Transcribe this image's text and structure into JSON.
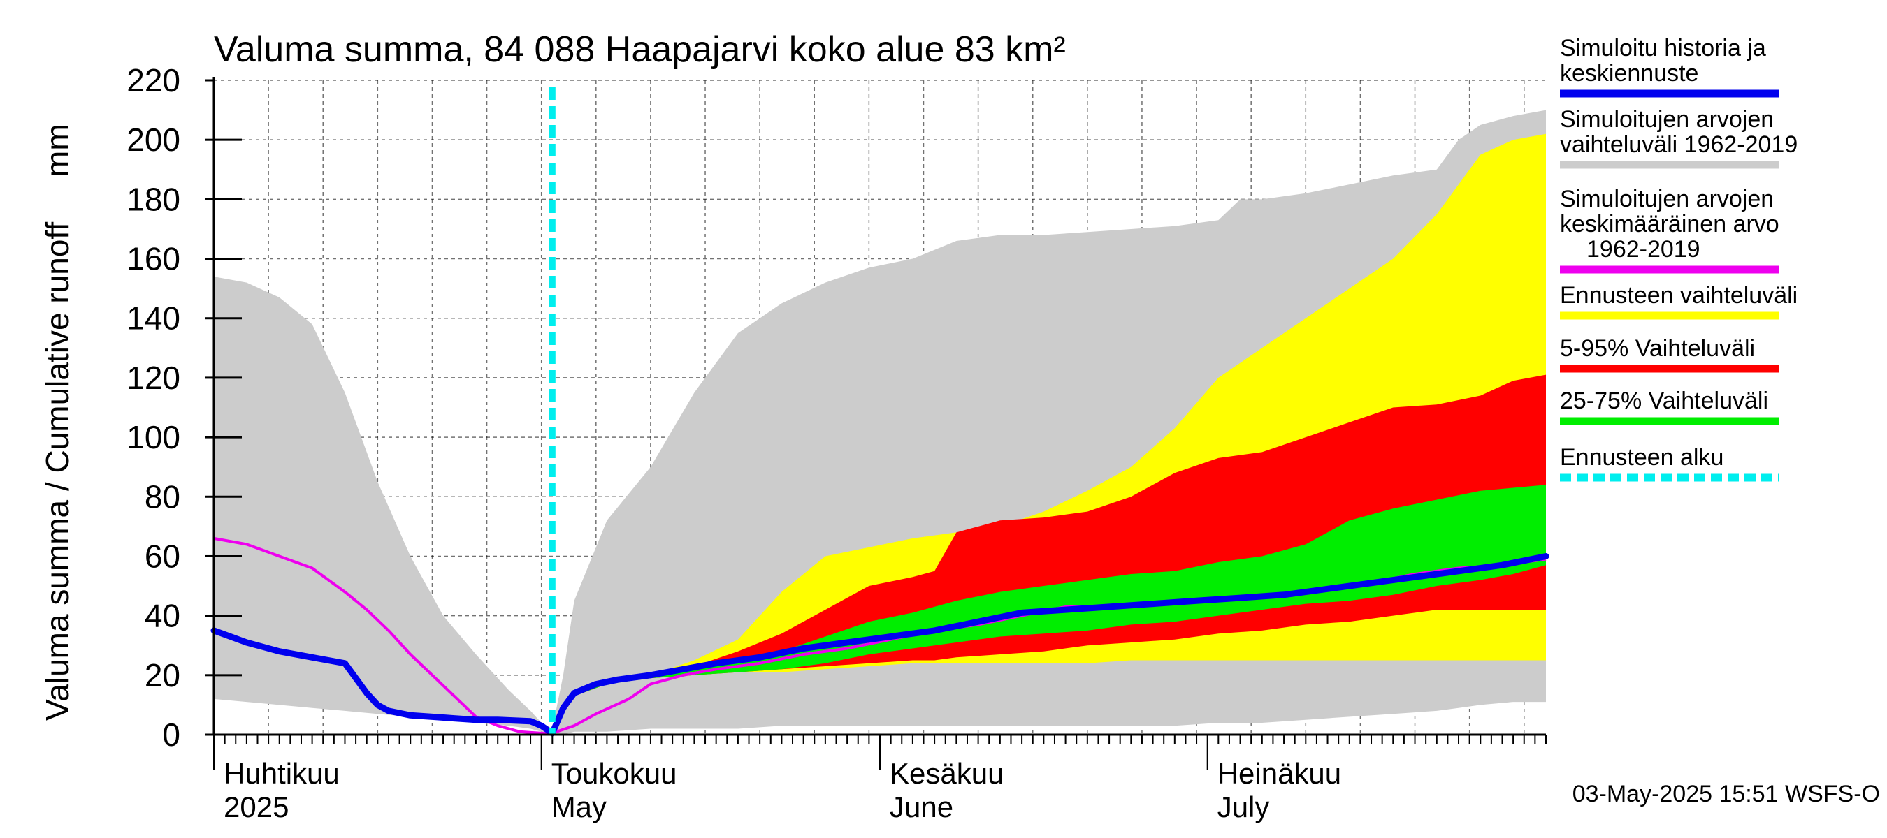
{
  "chart_data": {
    "type": "area",
    "title": "Valuma summa, 84 088 Haapajarvi koko alue 83 km²",
    "ylabel": "Valuma summa / Cumulative runoff     mm",
    "ylim": [
      0,
      220
    ],
    "yticks": [
      0,
      20,
      40,
      60,
      80,
      100,
      120,
      140,
      160,
      180,
      200,
      220
    ],
    "grid": true,
    "legend_position": "right",
    "x_range_days": [
      0,
      122
    ],
    "forecast_start_day": 31,
    "months": [
      {
        "label": "Huhtikuu",
        "sub": "2025",
        "day": 0
      },
      {
        "label": "Toukokuu",
        "sub": "May",
        "day": 30
      },
      {
        "label": "Kesäkuu",
        "sub": "June",
        "day": 61
      },
      {
        "label": "Heinäkuu",
        "sub": "July",
        "day": 91
      }
    ],
    "legend": [
      {
        "label": "Simuloitu historia ja",
        "label2": "keskiennuste",
        "label3": "",
        "color": "#0000ee",
        "style": "line"
      },
      {
        "label": "Simuloitujen arvojen",
        "label2": "vaihteluväli 1962-2019",
        "label3": "",
        "color": "#cccccc",
        "style": "line"
      },
      {
        "label": "Simuloitujen arvojen",
        "label2": "keskimääräinen arvo",
        "label3": "1962-2019",
        "color": "#ee00ee",
        "style": "line"
      },
      {
        "label": "Ennusteen vaihteluväli",
        "label2": "",
        "label3": "",
        "color": "#ffff00",
        "style": "line"
      },
      {
        "label": "5-95% Vaihteluväli",
        "label2": "",
        "label3": "",
        "color": "#ff0000",
        "style": "line"
      },
      {
        "label": "25-75% Vaihteluväli",
        "label2": "",
        "label3": "",
        "color": "#00ee00",
        "style": "line"
      },
      {
        "label": "Ennusteen alku",
        "label2": "",
        "label3": "",
        "color": "#00eeee",
        "style": "dashed"
      }
    ],
    "series": {
      "hist_range": {
        "x": [
          0,
          3,
          6,
          9,
          12,
          15,
          18,
          21,
          24,
          27,
          29,
          30,
          31,
          32,
          33,
          36,
          40,
          44,
          48,
          52,
          56,
          60,
          64,
          68,
          72,
          76,
          80,
          84,
          88,
          92,
          94,
          96,
          100,
          104,
          108,
          112,
          114,
          116,
          119,
          122
        ],
        "upper": [
          154,
          152,
          147,
          138,
          115,
          85,
          60,
          40,
          27,
          15,
          8,
          4,
          2,
          20,
          45,
          72,
          90,
          115,
          135,
          145,
          152,
          157,
          160,
          166,
          168,
          168,
          169,
          170,
          171,
          173,
          180,
          180,
          182,
          185,
          188,
          190,
          200,
          205,
          208,
          210
        ],
        "lower": [
          12,
          11,
          10,
          9,
          8,
          7,
          6,
          5,
          4,
          3,
          2,
          1,
          0,
          0,
          1,
          1,
          2,
          2,
          2,
          3,
          3,
          3,
          3,
          3,
          3,
          3,
          3,
          3,
          3,
          4,
          4,
          4,
          5,
          6,
          7,
          8,
          9,
          10,
          11,
          11
        ]
      },
      "forecast_range": {
        "x": [
          31,
          33,
          36,
          40,
          44,
          48,
          52,
          56,
          60,
          64,
          68,
          72,
          76,
          80,
          84,
          88,
          92,
          96,
          100,
          104,
          108,
          112,
          116,
          119,
          122
        ],
        "upper": [
          1,
          14,
          18,
          20,
          25,
          32,
          48,
          60,
          63,
          66,
          68,
          70,
          75,
          82,
          90,
          103,
          120,
          130,
          140,
          150,
          160,
          175,
          195,
          200,
          202
        ],
        "lower": [
          1,
          13,
          17,
          19,
          20,
          21,
          21,
          22,
          23,
          24,
          24,
          24,
          24,
          24,
          25,
          25,
          25,
          25,
          25,
          25,
          25,
          25,
          25,
          25,
          25
        ]
      },
      "p5_95": {
        "x": [
          31,
          33,
          36,
          40,
          44,
          48,
          52,
          56,
          60,
          64,
          66,
          68,
          72,
          76,
          80,
          84,
          88,
          92,
          96,
          100,
          104,
          108,
          112,
          116,
          119,
          122
        ],
        "upper": [
          1,
          14,
          18,
          20,
          23,
          28,
          34,
          42,
          50,
          53,
          55,
          68,
          72,
          73,
          75,
          80,
          88,
          93,
          95,
          100,
          105,
          110,
          111,
          114,
          119,
          121
        ],
        "lower": [
          1,
          13,
          17,
          19,
          20,
          21,
          22,
          23,
          24,
          25,
          25,
          26,
          27,
          28,
          30,
          31,
          32,
          34,
          35,
          37,
          38,
          40,
          42,
          42,
          42,
          42
        ]
      },
      "p25_75": {
        "x": [
          31,
          33,
          36,
          40,
          44,
          48,
          52,
          56,
          60,
          64,
          68,
          72,
          76,
          80,
          84,
          88,
          92,
          96,
          100,
          104,
          108,
          112,
          116,
          119,
          122
        ],
        "upper": [
          1,
          14,
          18,
          20,
          22,
          25,
          28,
          33,
          38,
          41,
          45,
          48,
          50,
          52,
          54,
          55,
          58,
          60,
          64,
          72,
          76,
          79,
          82,
          83,
          84
        ],
        "lower": [
          1,
          13,
          17,
          19,
          20,
          21,
          22,
          24,
          27,
          29,
          31,
          33,
          34,
          35,
          37,
          38,
          40,
          42,
          44,
          45,
          47,
          50,
          52,
          54,
          57
        ]
      },
      "mean": {
        "x": [
          0,
          3,
          6,
          9,
          12,
          14,
          16,
          18,
          20,
          22,
          24,
          26,
          28,
          30,
          31,
          33,
          35,
          38,
          40,
          43,
          46,
          50,
          54,
          58,
          62,
          66,
          70,
          74,
          78,
          82,
          86,
          90,
          94,
          98,
          102,
          106,
          110,
          114,
          118,
          122
        ],
        "y": [
          66,
          64,
          60,
          56,
          48,
          42,
          35,
          27,
          20,
          13,
          6,
          3,
          1,
          0.5,
          0.5,
          3,
          7,
          12,
          17,
          20,
          22,
          24,
          27,
          29,
          32,
          35,
          37,
          40,
          43,
          43,
          44,
          45,
          46,
          47,
          49,
          51,
          54,
          56,
          57,
          59
        ]
      },
      "main": {
        "x": [
          0,
          3,
          6,
          9,
          12,
          13,
          14,
          15,
          16,
          18,
          20,
          22,
          24,
          26,
          29,
          30,
          31,
          32,
          33,
          35,
          37,
          40,
          43,
          46,
          50,
          54,
          58,
          62,
          66,
          70,
          74,
          78,
          82,
          86,
          90,
          94,
          98,
          102,
          106,
          110,
          114,
          118,
          122
        ],
        "y": [
          35,
          31,
          28,
          26,
          24,
          19,
          14,
          10,
          8,
          6.5,
          6,
          5.5,
          5,
          5,
          4.5,
          3,
          0.5,
          9,
          14,
          17,
          18.5,
          20,
          22,
          24,
          26,
          29,
          31,
          33,
          35,
          38,
          41,
          42,
          43,
          44,
          45,
          46,
          47,
          49,
          51,
          53,
          55,
          57,
          60
        ]
      }
    }
  },
  "footer": {
    "timestamp": "03-May-2025 15:51 WSFS-O"
  }
}
